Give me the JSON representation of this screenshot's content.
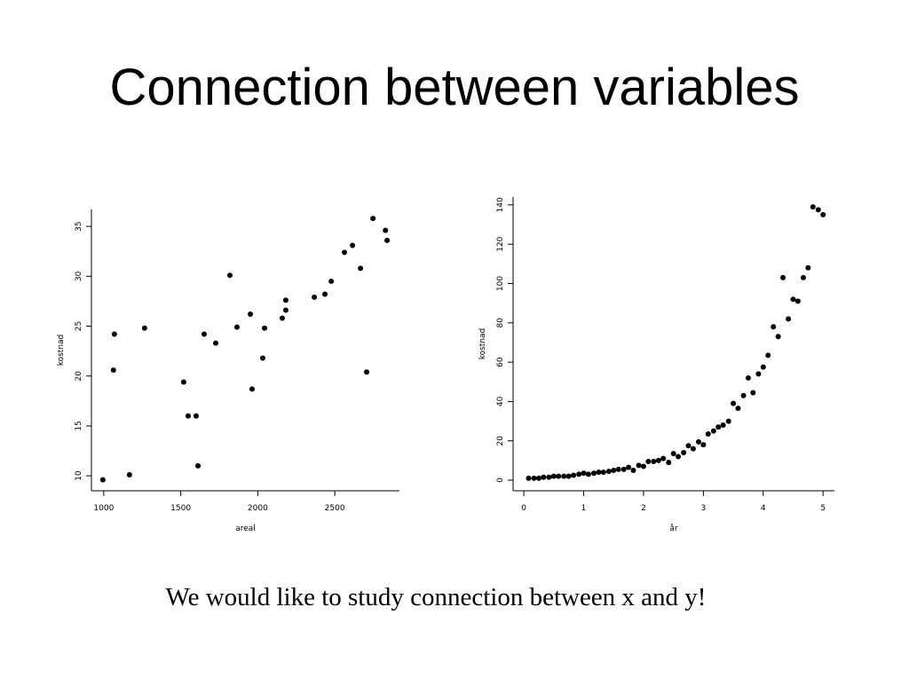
{
  "title": "Connection between variables",
  "caption": "We would like to study connection between x and y!",
  "chart_data": [
    {
      "type": "scatter",
      "x_label": "areal",
      "y_label": "kostnad",
      "color": "#000000",
      "x": [
        994,
        1063,
        1069,
        1167,
        1265,
        1519,
        1548,
        1600,
        1612,
        1652,
        1727,
        1819,
        1865,
        1952,
        1963,
        2044,
        2032,
        2159,
        2182,
        2182,
        2367,
        2436,
        2477,
        2563,
        2615,
        2667,
        2707,
        2748,
        2829,
        2840
      ],
      "values": [
        9.6,
        20.6,
        24.2,
        10.1,
        24.8,
        19.4,
        16.0,
        16.0,
        11.0,
        24.2,
        23.3,
        30.1,
        24.9,
        26.2,
        18.7,
        24.8,
        21.8,
        25.8,
        26.6,
        27.6,
        27.9,
        28.2,
        29.5,
        32.4,
        33.1,
        30.8,
        20.4,
        35.8,
        34.6,
        33.6
      ],
      "xlim": [
        920,
        2920
      ],
      "ylim": [
        8.5,
        36.7
      ],
      "xticks": [
        1000,
        1500,
        2000,
        2500
      ],
      "yticks": [
        10,
        15,
        20,
        25,
        30,
        35
      ]
    },
    {
      "type": "scatter",
      "x_label": "år",
      "y_label": "kostnad",
      "color": "#000000",
      "x": [
        0.08,
        0.17,
        0.25,
        0.33,
        0.42,
        0.5,
        0.58,
        0.67,
        0.75,
        0.83,
        0.92,
        1.0,
        1.08,
        1.17,
        1.25,
        1.33,
        1.42,
        1.5,
        1.58,
        1.67,
        1.75,
        1.83,
        1.92,
        2.0,
        2.08,
        2.17,
        2.25,
        2.33,
        2.42,
        2.5,
        2.58,
        2.67,
        2.75,
        2.83,
        2.92,
        3.0,
        3.08,
        3.17,
        3.25,
        3.33,
        3.42,
        3.5,
        3.58,
        3.67,
        3.75,
        3.83,
        3.92,
        4.0,
        4.08,
        4.17,
        4.25,
        4.33,
        4.42,
        4.5,
        4.58,
        4.67,
        4.75,
        4.83,
        4.92,
        5.0
      ],
      "values": [
        1,
        1,
        1,
        1.5,
        1.5,
        2,
        2,
        2,
        2,
        2.5,
        3,
        3.5,
        3,
        3.5,
        4,
        4,
        4.5,
        5,
        5.5,
        5.5,
        6.5,
        5,
        7.5,
        7,
        9.5,
        9.5,
        10,
        11,
        9,
        13.5,
        12,
        14,
        17.5,
        16,
        19.5,
        18,
        23.5,
        25,
        27,
        28,
        30,
        39,
        36.5,
        43,
        52,
        44.5,
        54,
        57.5,
        63.5,
        78,
        73,
        103,
        82,
        92,
        91,
        103,
        108,
        139,
        137.5,
        135
      ],
      "xlim": [
        -0.18,
        5.19
      ],
      "ylim": [
        -5.4,
        144
      ],
      "xticks": [
        0,
        1,
        2,
        3,
        4,
        5
      ],
      "yticks": [
        0,
        20,
        40,
        60,
        80,
        100,
        120,
        140
      ]
    }
  ]
}
